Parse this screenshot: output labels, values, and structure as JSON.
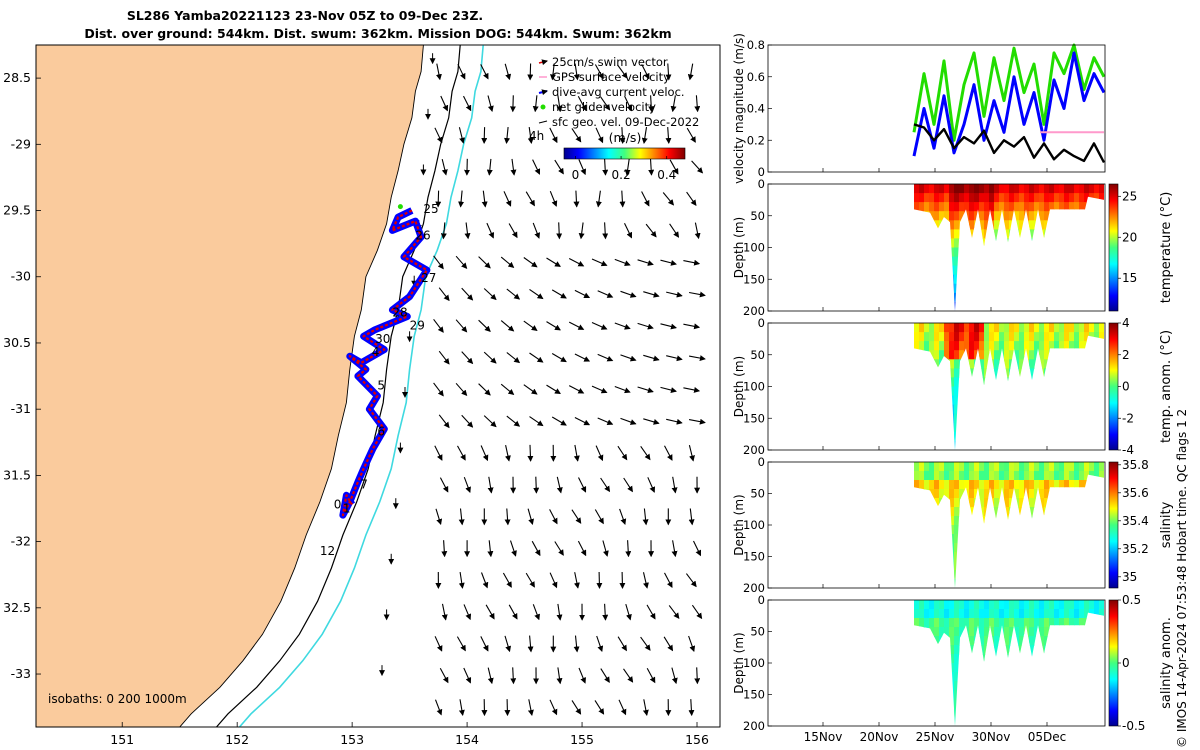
{
  "title": {
    "line1": "SL286 Yamba20221123 23-Nov 05Z to 09-Dec 23Z.",
    "line2": "Dist. over ground: 544km. Dist. swum: 362km. Mission DOG: 544km. Swum: 362km"
  },
  "colors": {
    "land": "#FACB9D",
    "track": "#0000FF",
    "swim_vector": "#DD0000",
    "isobath_200": "#000000",
    "isobath_1000": "#3FD9E0",
    "net_glider": "#22DD00",
    "gps": "#FF99CC"
  },
  "map": {
    "lon_ticks": [
      "151",
      "152",
      "153",
      "154",
      "155",
      "156"
    ],
    "lat_ticks": [
      "28.5",
      "-29",
      "29.5",
      "-30",
      "30.5",
      "-31",
      "31.5",
      "-32",
      "32.5",
      "-33"
    ],
    "xlim": [
      150.25,
      156.2
    ],
    "ylim": [
      -33.4,
      -28.25
    ],
    "legend": [
      "25cm/s swim vector",
      "GPS surface velocity",
      "dive-avg current veloc.",
      "net glider velocity",
      "sfc geo. vel. 09-Dec-2022"
    ],
    "colorbar_unit": "(m/s)",
    "colorbar_ticks": [
      "0",
      "0.2",
      "0.4"
    ],
    "colorbar_range": [
      -0.05,
      0.48
    ],
    "hour_label": "4h",
    "isobath_label": "isobaths: 0   200  1000m",
    "day_labels": [
      "25",
      "26",
      "27",
      "28",
      "29",
      "30",
      "4",
      "5",
      "6",
      "7",
      "0",
      "1",
      "12"
    ]
  },
  "chart_data": [
    {
      "type": "line",
      "ylabel": "velocity magnitude (m/s)",
      "ylim": [
        0,
        0.8
      ],
      "yticks": [
        "0",
        "0.2",
        "0.4",
        "0.6",
        "0.8"
      ],
      "xtick_labels": [
        "15Nov",
        "20Nov",
        "25Nov",
        "30Nov",
        "05Dec"
      ],
      "series": [
        {
          "color": "#22DD00",
          "values": [
            0.25,
            0.62,
            0.3,
            0.7,
            0.2,
            0.55,
            0.75,
            0.35,
            0.72,
            0.45,
            0.78,
            0.5,
            0.68,
            0.3,
            0.75,
            0.62,
            0.8,
            0.52,
            0.72,
            0.6
          ]
        },
        {
          "color": "#0000FF",
          "values": [
            0.1,
            0.4,
            0.15,
            0.48,
            0.12,
            0.3,
            0.55,
            0.2,
            0.45,
            0.25,
            0.6,
            0.3,
            0.5,
            0.2,
            0.58,
            0.4,
            0.75,
            0.45,
            0.62,
            0.5
          ]
        },
        {
          "color": "#000000",
          "values": [
            0.3,
            0.28,
            0.2,
            0.27,
            0.15,
            0.22,
            0.18,
            0.26,
            0.12,
            0.2,
            0.16,
            0.22,
            0.09,
            0.18,
            0.08,
            0.14,
            0.1,
            0.07,
            0.18,
            0.06
          ]
        },
        {
          "color": "#FF99CC",
          "values": [
            0.25,
            0.25,
            0.25,
            0.25,
            0.25
          ]
        }
      ]
    },
    {
      "type": "heatmap",
      "ylabel": "Depth (m)",
      "ylim": [
        0,
        200
      ],
      "yticks": [
        "0",
        "50",
        "100",
        "150",
        "200"
      ],
      "colorbar_label": "temperature (°C)",
      "colorbar_ticks": [
        "15",
        "20",
        "25"
      ],
      "colorbar_range": [
        11,
        26.5
      ]
    },
    {
      "type": "heatmap",
      "ylabel": "Depth (m)",
      "ylim": [
        0,
        200
      ],
      "yticks": [
        "0",
        "50",
        "100",
        "150",
        "200"
      ],
      "colorbar_label": "temp. anom. (°C)",
      "colorbar_ticks": [
        "-4",
        "-2",
        "0",
        "2",
        "4"
      ],
      "colorbar_range": [
        -4,
        4
      ]
    },
    {
      "type": "heatmap",
      "ylabel": "Depth (m)",
      "ylim": [
        0,
        200
      ],
      "yticks": [
        "0",
        "50",
        "100",
        "150",
        "200"
      ],
      "colorbar_label": "salinity",
      "colorbar_ticks": [
        "35",
        "35.2",
        "35.4",
        "35.6",
        "35.8"
      ],
      "colorbar_range": [
        34.92,
        35.82
      ]
    },
    {
      "type": "heatmap",
      "ylabel": "Depth (m)",
      "ylim": [
        0,
        200
      ],
      "yticks": [
        "0",
        "50",
        "100",
        "150",
        "200"
      ],
      "colorbar_label": "salinity anom.",
      "colorbar_ticks": [
        "-0.5",
        "0",
        "0.5"
      ],
      "colorbar_range": [
        -0.5,
        0.5
      ]
    }
  ],
  "footer": "© IMOS 14-Apr-2024 07:53:48 Hobart time. QC flags 1  2"
}
